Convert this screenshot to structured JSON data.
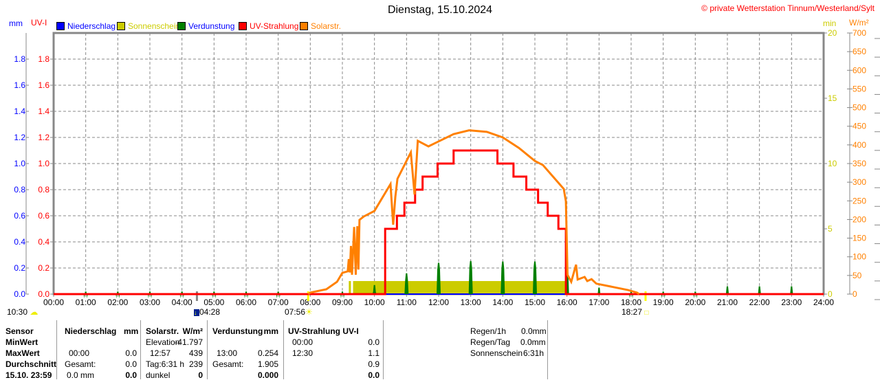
{
  "title": "Dienstag, 15.10.2024",
  "copyright": "© private Wetterstation Tinnum/Westerland/Sylt",
  "axis_units": {
    "mm": "mm",
    "uv": "UV-I",
    "min": "min",
    "wm2": "W/m²"
  },
  "legend": [
    {
      "label": "Niederschlag",
      "color": "#0000ff",
      "text_color": "#0000ff"
    },
    {
      "label": "Sonnenschein",
      "color": "#cccc00",
      "text_color": "#cccc00"
    },
    {
      "label": "Verdunstung",
      "color": "#008000",
      "text_color": "#0000ff"
    },
    {
      "label": "UV-Strahlung",
      "color": "#ff0000",
      "text_color": "#ff0000"
    },
    {
      "label": "Solarstr.",
      "color": "#ff8000",
      "text_color": "#ff8000"
    }
  ],
  "markers": {
    "moon_left": "10:30",
    "moonset": "04:28",
    "sunrise": "07:56",
    "sunset": "18:27"
  },
  "chart_data": {
    "type": "line",
    "x_range": [
      "00:00",
      "24:00"
    ],
    "x_ticks": [
      "00:00",
      "01:00",
      "02:00",
      "03:00",
      "04:00",
      "05:00",
      "06:00",
      "07:00",
      "08:00",
      "09:00",
      "10:00",
      "11:00",
      "12:00",
      "13:00",
      "14:00",
      "15:00",
      "16:00",
      "17:00",
      "18:00",
      "19:00",
      "20:00",
      "21:00",
      "22:00",
      "23:00",
      "24:00"
    ],
    "y_left_mm": {
      "range": [
        0,
        2.0
      ],
      "ticks": [
        "0.0",
        "0.2",
        "0.4",
        "0.6",
        "0.8",
        "1.0",
        "1.2",
        "1.4",
        "1.6",
        "1.8"
      ]
    },
    "y_left_uv": {
      "range": [
        0,
        2.0
      ],
      "ticks": [
        "0.0",
        "0.2",
        "0.4",
        "0.6",
        "0.8",
        "1.0",
        "1.2",
        "1.4",
        "1.6",
        "1.8"
      ]
    },
    "y_right_min": {
      "range": [
        0,
        20
      ],
      "ticks": [
        "0",
        "5",
        "10",
        "15",
        "20"
      ]
    },
    "y_right_wm2": {
      "range": [
        0,
        700
      ],
      "ticks": [
        "0",
        "50",
        "100",
        "150",
        "200",
        "250",
        "300",
        "350",
        "400",
        "450",
        "500",
        "550",
        "600",
        "650",
        "700"
      ]
    },
    "grid": true,
    "series": [
      {
        "name": "Niederschlag",
        "axis": "mm",
        "color": "#0000ff",
        "points": [
          [
            "00:00",
            0
          ],
          [
            "24:00",
            0
          ]
        ]
      },
      {
        "name": "Sonnenschein",
        "axis": "min",
        "color": "#cccc00",
        "bars": [
          [
            "09:12",
            "09:16",
            1
          ],
          [
            "09:20",
            "16:00",
            1
          ]
        ]
      },
      {
        "name": "Verdunstung",
        "axis": "mm",
        "color": "#008000",
        "spikes": [
          [
            "01:00",
            0.02
          ],
          [
            "02:00",
            0.02
          ],
          [
            "03:00",
            0.02
          ],
          [
            "04:00",
            0.02
          ],
          [
            "05:00",
            0.02
          ],
          [
            "06:00",
            0.02
          ],
          [
            "07:00",
            0.02
          ],
          [
            "09:00",
            0.02
          ],
          [
            "10:00",
            0.07
          ],
          [
            "11:00",
            0.16
          ],
          [
            "12:00",
            0.24
          ],
          [
            "13:00",
            0.254
          ],
          [
            "14:00",
            0.25
          ],
          [
            "15:00",
            0.25
          ],
          [
            "16:00",
            0.21
          ],
          [
            "17:00",
            0.05
          ],
          [
            "18:00",
            0.02
          ],
          [
            "19:00",
            0.02
          ],
          [
            "20:00",
            0.02
          ],
          [
            "21:00",
            0.06
          ],
          [
            "22:00",
            0.06
          ],
          [
            "23:00",
            0.06
          ]
        ]
      },
      {
        "name": "UV-Strahlung",
        "axis": "uv",
        "color": "#ff0000",
        "steps": [
          [
            "00:00",
            0
          ],
          [
            "10:20",
            0.5
          ],
          [
            "10:42",
            0.6
          ],
          [
            "10:56",
            0.7
          ],
          [
            "11:16",
            0.8
          ],
          [
            "11:30",
            0.9
          ],
          [
            "11:58",
            1.0
          ],
          [
            "12:28",
            1.1
          ],
          [
            "13:50",
            1.0
          ],
          [
            "14:20",
            0.9
          ],
          [
            "14:44",
            0.8
          ],
          [
            "15:06",
            0.7
          ],
          [
            "15:24",
            0.6
          ],
          [
            "15:44",
            0.5
          ],
          [
            "15:58",
            0
          ],
          [
            "24:00",
            0
          ]
        ]
      },
      {
        "name": "Solarstr.",
        "axis": "wm2",
        "color": "#ff8000",
        "points": [
          [
            "07:56",
            0
          ],
          [
            "08:00",
            4
          ],
          [
            "08:30",
            13
          ],
          [
            "08:50",
            33
          ],
          [
            "09:00",
            57
          ],
          [
            "09:10",
            61
          ],
          [
            "09:12",
            94
          ],
          [
            "09:14",
            58
          ],
          [
            "09:16",
            129
          ],
          [
            "09:18",
            52
          ],
          [
            "09:22",
            180
          ],
          [
            "09:25",
            52
          ],
          [
            "09:28",
            182
          ],
          [
            "09:30",
            66
          ],
          [
            "09:32",
            199
          ],
          [
            "09:40",
            208
          ],
          [
            "10:00",
            223
          ],
          [
            "10:30",
            295
          ],
          [
            "10:35",
            186
          ],
          [
            "10:39",
            260
          ],
          [
            "10:43",
            309
          ],
          [
            "11:08",
            380
          ],
          [
            "11:15",
            267
          ],
          [
            "11:21",
            411
          ],
          [
            "11:41",
            396
          ],
          [
            "12:28",
            429
          ],
          [
            "12:57",
            439
          ],
          [
            "13:30",
            435
          ],
          [
            "14:00",
            420
          ],
          [
            "14:30",
            392
          ],
          [
            "15:00",
            357
          ],
          [
            "15:15",
            346
          ],
          [
            "15:54",
            282
          ],
          [
            "15:58",
            249
          ],
          [
            "16:01",
            52
          ],
          [
            "16:08",
            33
          ],
          [
            "16:17",
            79
          ],
          [
            "16:20",
            39
          ],
          [
            "16:33",
            46
          ],
          [
            "16:38",
            35
          ],
          [
            "16:46",
            40
          ],
          [
            "16:55",
            28
          ],
          [
            "17:54",
            11
          ],
          [
            "18:11",
            4
          ],
          [
            "18:15",
            0
          ]
        ]
      }
    ]
  },
  "table": {
    "sensor": {
      "header": "Sensor",
      "rows": [
        "MinWert",
        "MaxWert",
        "Durchschnitt",
        "15.10. 23:59"
      ]
    },
    "niederschlag": {
      "header": "Niederschlag",
      "unit": "mm",
      "max_time": "00:00",
      "max_val": "0.0",
      "avg_label": "Gesamt:",
      "avg_val": "0.0",
      "cur_label": "0.0 mm",
      "cur_val": "0.0"
    },
    "solar": {
      "header": "Solarstr.",
      "unit": "W/m²",
      "min_label": "Elevation",
      "min_val": "-41.797",
      "max_time": "12:57",
      "max_val": "439",
      "avg_label": "Tag:6:31 h",
      "avg_val": "239",
      "cur_label": "dunkel",
      "cur_val": "0"
    },
    "verdunstung": {
      "header": "Verdunstung",
      "unit": "mm",
      "max_time": "13:00",
      "max_val": "0.254",
      "avg_label": "Gesamt:",
      "avg_val": "1.905",
      "cur_val": "0.000"
    },
    "uv": {
      "header": "UV-Strahlung UV-I",
      "min_time": "00:00",
      "min_val": "0.0",
      "max_time": "12:30",
      "max_val": "1.1",
      "avg_val": "0.9",
      "cur_val": "0.0"
    },
    "summary": [
      {
        "label": "Regen/1h",
        "value": "0.0mm"
      },
      {
        "label": "Regen/Tag",
        "value": "0.0mm"
      },
      {
        "label": "Sonnenschein",
        "value": "6:31h"
      }
    ]
  }
}
